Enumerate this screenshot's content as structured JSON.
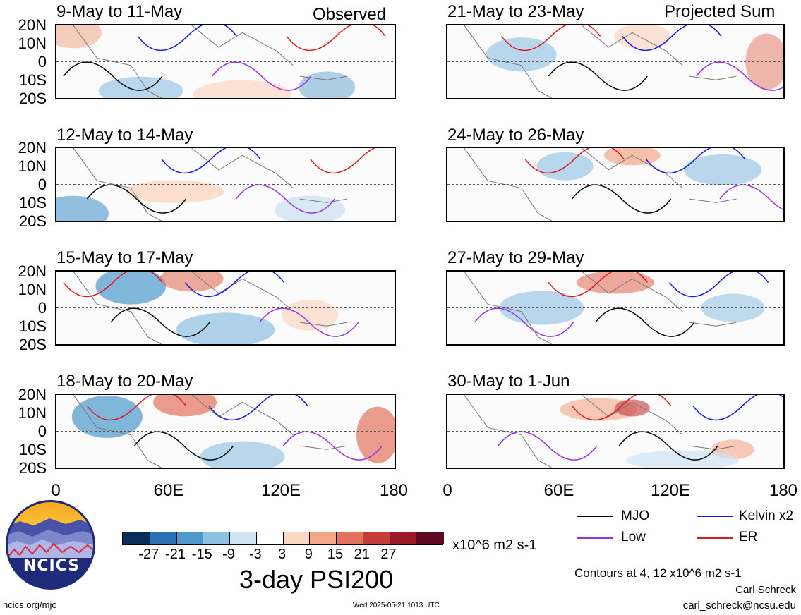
{
  "header": {
    "left_label": "Observed",
    "right_label": "Projected Sum"
  },
  "panels": [
    {
      "title": "9-May to 11-May"
    },
    {
      "title": "12-May to 14-May"
    },
    {
      "title": "15-May to 17-May"
    },
    {
      "title": "18-May to 20-May"
    },
    {
      "title": "21-May to 23-May"
    },
    {
      "title": "24-May to 26-May"
    },
    {
      "title": "27-May to 29-May"
    },
    {
      "title": "30-May to 1-Jun"
    }
  ],
  "y_ticks": [
    "20N",
    "10N",
    "0",
    "10S",
    "20S"
  ],
  "x_ticks": [
    "0",
    "60E",
    "120E",
    "180"
  ],
  "colorbar": {
    "colors": [
      "#0a2d5c",
      "#2c6fb4",
      "#4d98cd",
      "#8ec0e2",
      "#cfe4f2",
      "#ffffff",
      "#fbd7c3",
      "#f3a787",
      "#e3725c",
      "#c53c3c",
      "#9d1a2b",
      "#5f0822"
    ],
    "ticks": [
      "-27",
      "-21",
      "-15",
      "-9",
      "-3",
      "3",
      "9",
      "15",
      "21",
      "27"
    ],
    "units": "x10^6 m2 s-1"
  },
  "title": "3-day PSI200",
  "legend": {
    "items": [
      {
        "label": "MJO",
        "color": "#000000"
      },
      {
        "label": "Kelvin x2",
        "color": "#1a1adb"
      },
      {
        "label": "Low",
        "color": "#9b30e0"
      },
      {
        "label": "ER",
        "color": "#e01a1a"
      }
    ],
    "contours_note": "Contours at 4, 12 x10^6 m2 s-1"
  },
  "footer": {
    "website": "ncics.org/mjo",
    "timestamp": "Wed 2025-05-21 1013 UTC",
    "author": "Carl Schreck",
    "email": "carl_schreck@ncsu.edu"
  },
  "logo": {
    "text": "NCICS"
  }
}
